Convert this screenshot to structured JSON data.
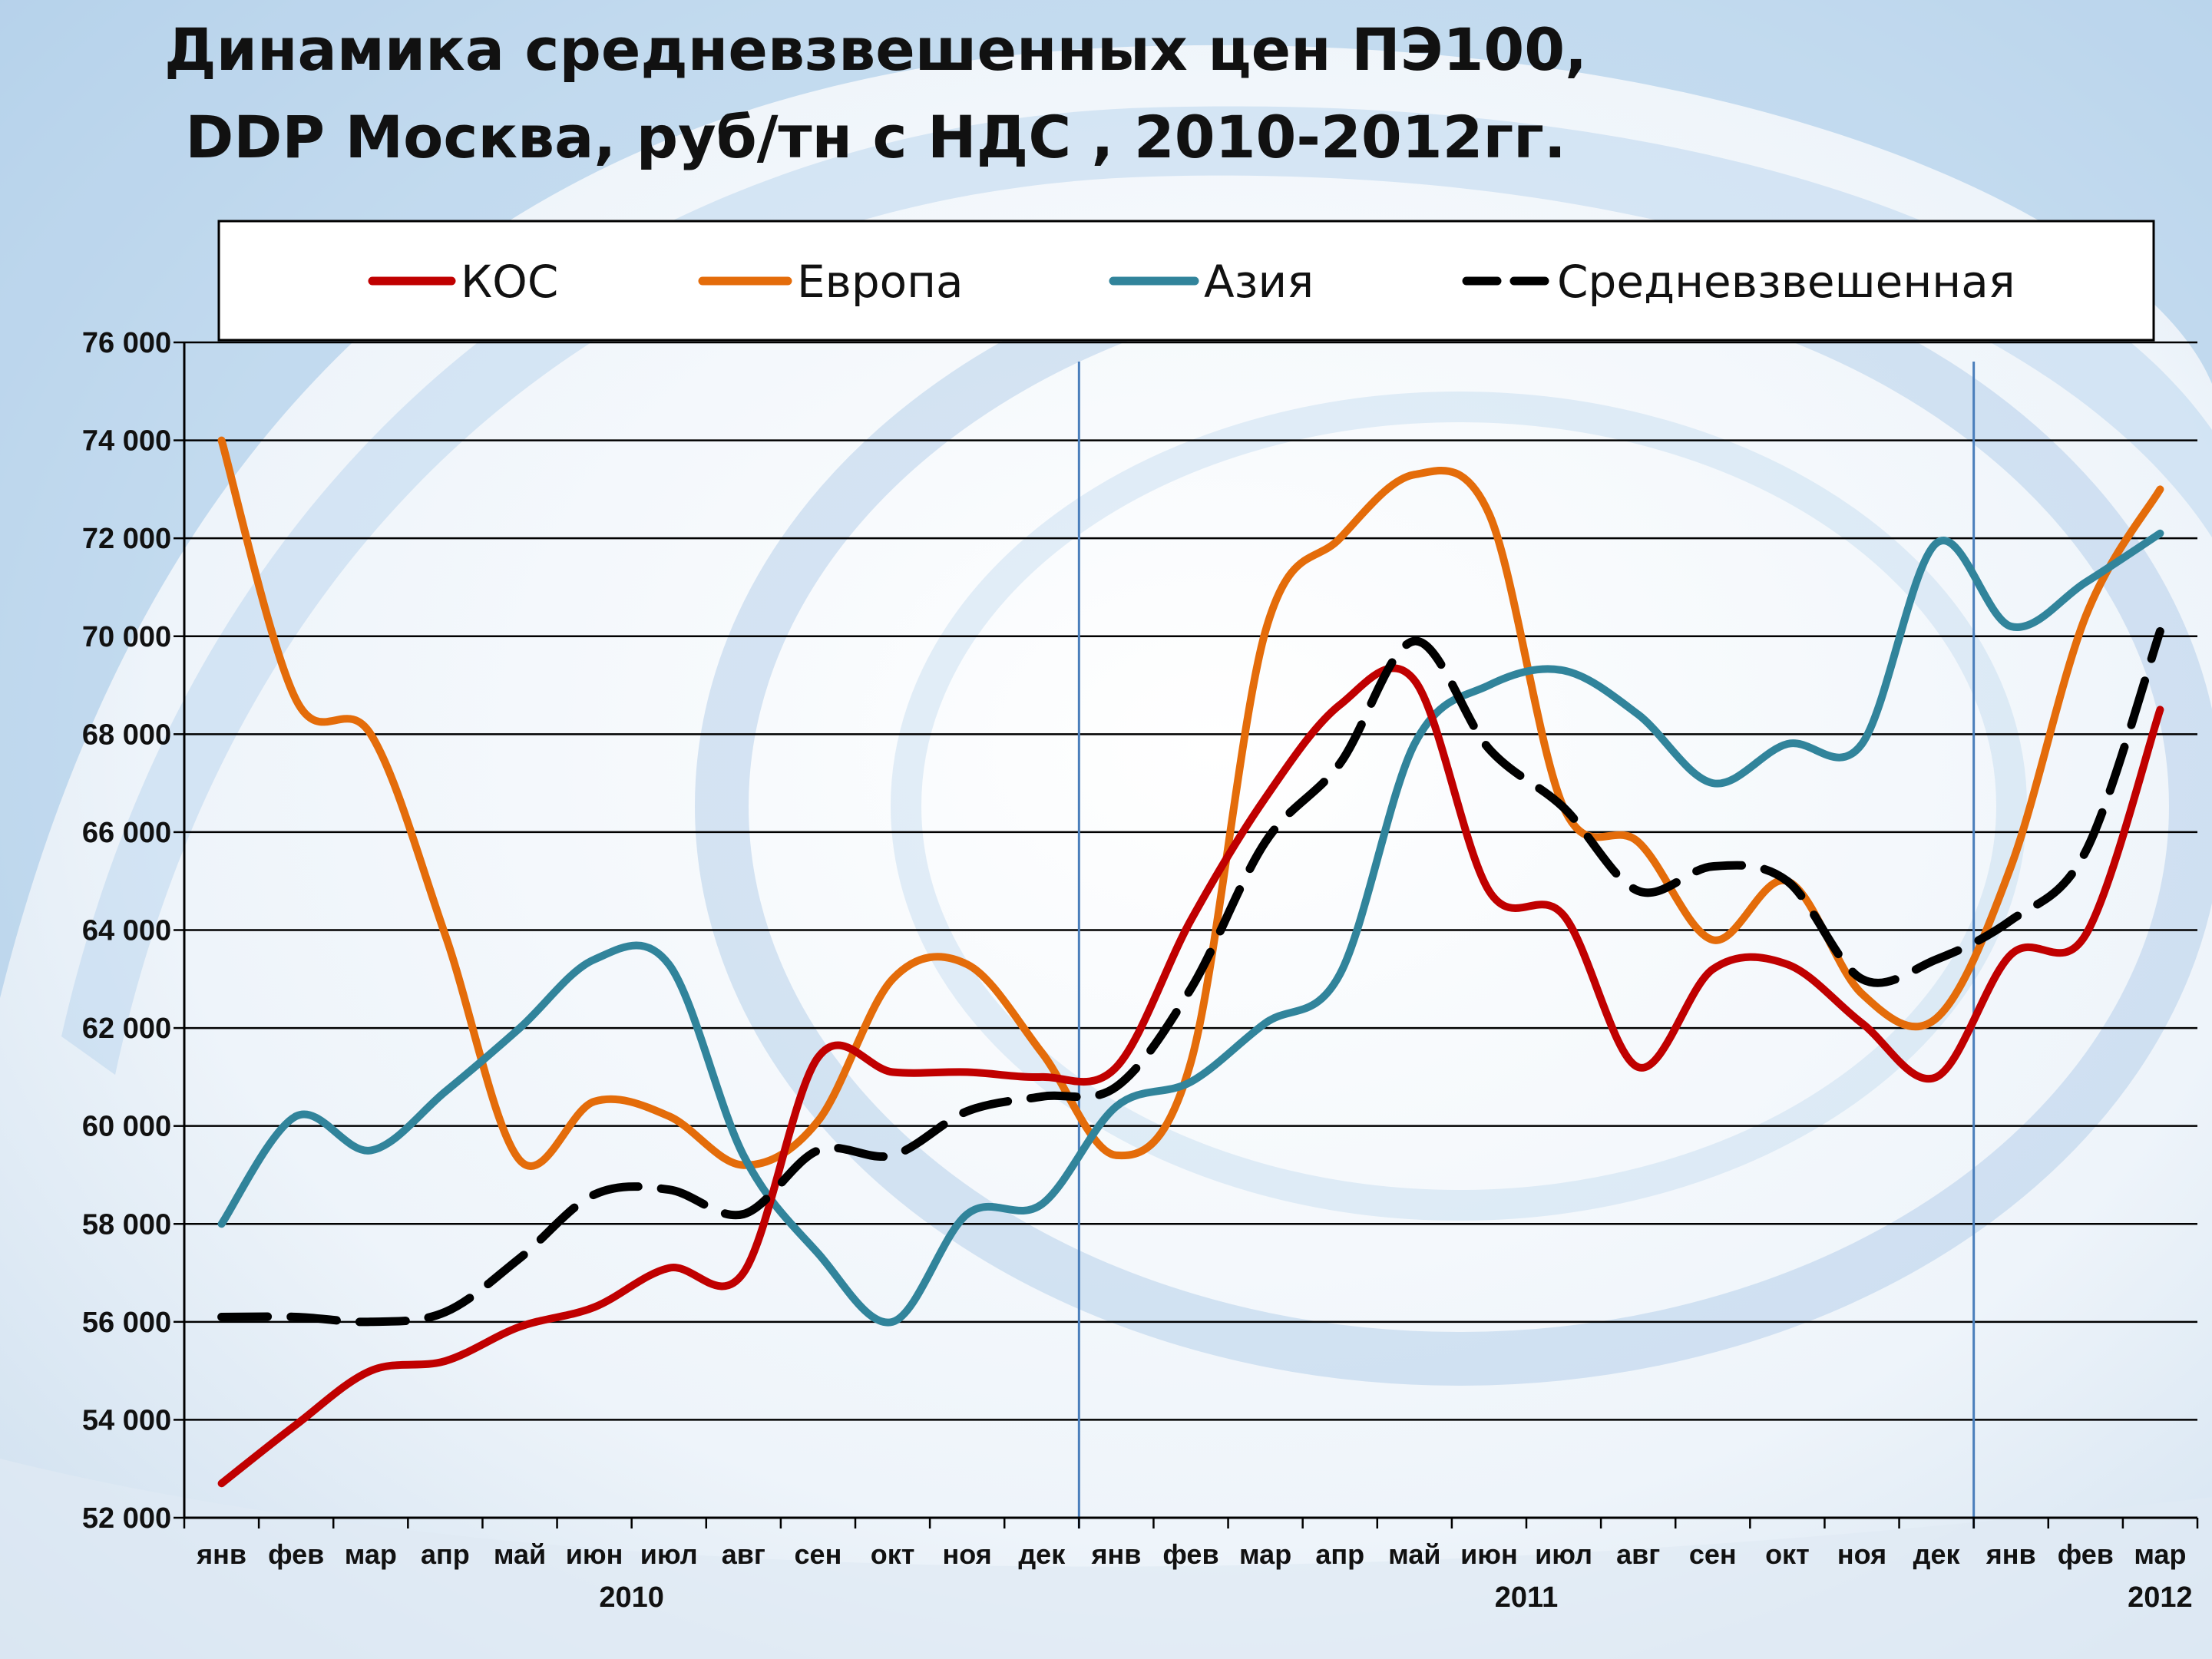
{
  "title": {
    "line1": "Динамика средневзвешенных цен ПЭ100,",
    "line2": "DDP Москва, руб/тн с НДС , 2010-2012гг."
  },
  "colors": {
    "koc": "#c00000",
    "europe": "#e46c0a",
    "asia": "#31849b",
    "avg": "#000000",
    "divider": "#4a7ebb"
  },
  "chart_data": {
    "type": "line",
    "title": "Динамика средневзвешенных цен ПЭ100, DDP Москва, руб/тн с НДС , 2010-2012гг.",
    "xlabel": "",
    "ylabel": "",
    "ylim": [
      52000,
      76000
    ],
    "yticks": [
      {
        "value": 52000,
        "label": "52 000"
      },
      {
        "value": 54000,
        "label": "54 000"
      },
      {
        "value": 56000,
        "label": "56 000"
      },
      {
        "value": 58000,
        "label": "58 000"
      },
      {
        "value": 60000,
        "label": "60 000"
      },
      {
        "value": 62000,
        "label": "62 000"
      },
      {
        "value": 64000,
        "label": "64 000"
      },
      {
        "value": 66000,
        "label": "66 000"
      },
      {
        "value": 68000,
        "label": "68 000"
      },
      {
        "value": 70000,
        "label": "70 000"
      },
      {
        "value": 72000,
        "label": "72 000"
      },
      {
        "value": 74000,
        "label": "74 000"
      },
      {
        "value": 76000,
        "label": "76 000"
      }
    ],
    "categories": [
      "янв",
      "фев",
      "мар",
      "апр",
      "май",
      "июн",
      "июл",
      "авг",
      "сен",
      "окт",
      "ноя",
      "дек",
      "янв",
      "фев",
      "мар",
      "апр",
      "май",
      "июн",
      "июл",
      "авг",
      "сен",
      "окт",
      "ноя",
      "дек",
      "янв",
      "фев",
      "мар"
    ],
    "years": [
      {
        "label": "2010",
        "center_index": 5.5
      },
      {
        "label": "2011",
        "center_index": 17.5
      },
      {
        "label": "2012",
        "center_index": 26
      }
    ],
    "dividers_after_index": [
      11,
      23
    ],
    "grid": true,
    "legend_position": "top",
    "series": [
      {
        "key": "koc",
        "name": "КОС",
        "dashed": false,
        "values": [
          52700,
          53900,
          55000,
          55200,
          55900,
          56300,
          57100,
          57000,
          61400,
          61100,
          61100,
          61000,
          61200,
          64200,
          66700,
          68600,
          69100,
          64800,
          64300,
          61200,
          63200,
          63300,
          62100,
          61000,
          63500,
          63900,
          68500
        ]
      },
      {
        "key": "europe",
        "name": "Европа",
        "dashed": false,
        "values": [
          74000,
          68700,
          68000,
          63900,
          59300,
          60500,
          60200,
          59200,
          60100,
          63000,
          63300,
          61500,
          59400,
          61300,
          70100,
          72000,
          73300,
          72500,
          66500,
          65800,
          63800,
          65000,
          62700,
          62200,
          65300,
          70400,
          73000
        ]
      },
      {
        "key": "asia",
        "name": "Азия",
        "dashed": false,
        "values": [
          58000,
          60200,
          59500,
          60700,
          62000,
          63400,
          63300,
          59400,
          57400,
          56000,
          58200,
          58400,
          60400,
          60900,
          62100,
          63100,
          67800,
          69000,
          69300,
          68400,
          67000,
          67800,
          67800,
          71900,
          70200,
          71100,
          72100
        ]
      },
      {
        "key": "avg",
        "name": "Средневзвешенная",
        "dashed": true,
        "values": [
          56100,
          56100,
          56000,
          56200,
          57300,
          58600,
          58700,
          58200,
          59500,
          59400,
          60300,
          60600,
          60800,
          62800,
          65800,
          67400,
          69900,
          67700,
          66500,
          64800,
          65300,
          65000,
          63000,
          63400,
          64200,
          65600,
          70100
        ]
      }
    ]
  }
}
